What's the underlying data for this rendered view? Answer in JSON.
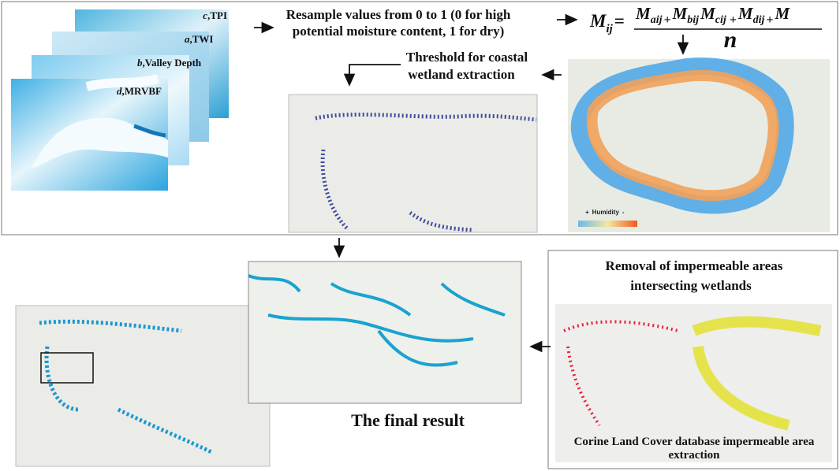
{
  "layers": [
    {
      "letter": "c",
      "name": ",TPI"
    },
    {
      "letter": "a",
      "name": ",TWI"
    },
    {
      "letter": "b",
      "name": ",Valley Depth"
    },
    {
      "letter": "d",
      "name": ",MRVBF"
    }
  ],
  "resample": {
    "lines": [
      "Resample values from 0 to 1 (0 for high",
      "potential moisture content, 1 for dry)"
    ]
  },
  "formula": {
    "lhs": {
      "base": "M",
      "sub": "ij"
    },
    "equals": "=",
    "operator": "+",
    "terms": [
      {
        "base": "M",
        "sub": "aij"
      },
      {
        "base": "M",
        "sub": "bij"
      },
      {
        "base": "M",
        "sub": "cij"
      },
      {
        "base": "M",
        "sub": "dij"
      },
      {
        "base": "M"
      }
    ],
    "denominator": "n"
  },
  "threshold": {
    "lines": [
      "Threshold for coastal",
      "wetland extraction"
    ]
  },
  "humidity_legend": {
    "plus": "+",
    "label": "Humidity",
    "minus": "-"
  },
  "removal": {
    "lines": [
      "Removal of impermeable areas",
      "intersecting wetlands"
    ]
  },
  "corine": {
    "lines": [
      "Corine Land Cover database impermeable area",
      "extraction"
    ]
  },
  "final_result": "The final result"
}
